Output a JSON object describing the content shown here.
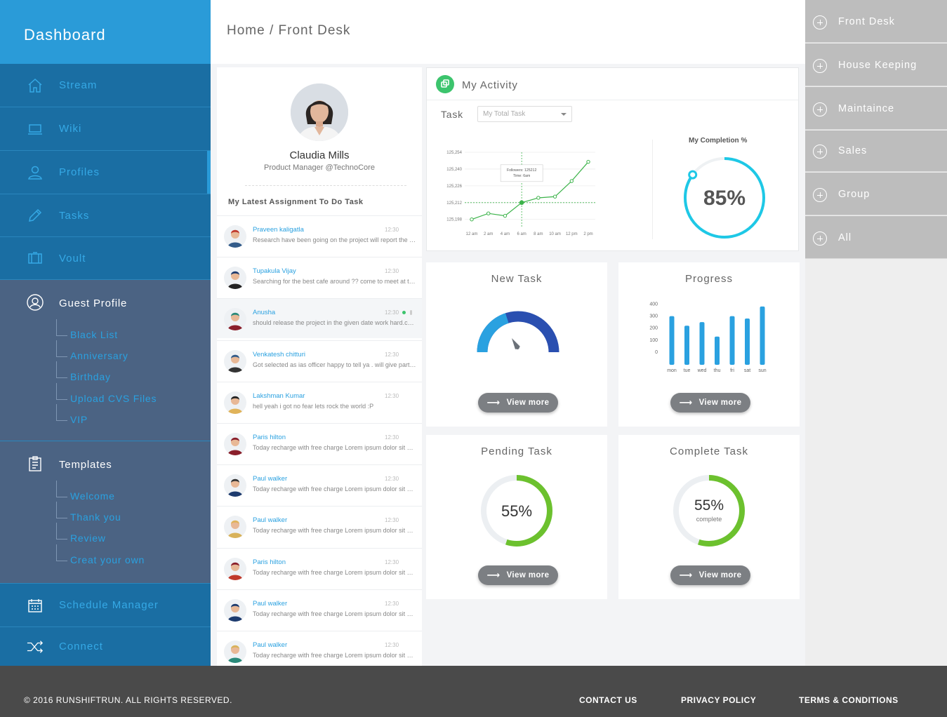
{
  "sidebar": {
    "title": "Dashboard",
    "items": [
      {
        "label": "Stream",
        "icon": "home-icon"
      },
      {
        "label": "Wiki",
        "icon": "laptop-icon"
      },
      {
        "label": "Profiles",
        "icon": "user-icon"
      },
      {
        "label": "Tasks",
        "icon": "pencil-icon"
      },
      {
        "label": "Voult",
        "icon": "vault-icon"
      }
    ],
    "guest_profile": {
      "label": "Guest Profile",
      "icon": "user-circle-icon",
      "subitems": [
        "Black List",
        "Anniversary",
        "Birthday",
        "Upload CVS Files",
        "VIP"
      ]
    },
    "templates": {
      "label": "Templates",
      "icon": "clipboard-icon",
      "subitems": [
        "Welcome",
        "Thank you",
        "Review",
        "Creat your own"
      ]
    },
    "bottom_items": [
      {
        "label": "Schedule Manager",
        "icon": "calendar-icon"
      },
      {
        "label": "Connect",
        "icon": "shuffle-icon"
      }
    ]
  },
  "header": {
    "breadcrumb": "Home / Front Desk"
  },
  "profile": {
    "name": "Claudia Mills",
    "role": "Product Manager @TechnoCore",
    "assignment_title": "My Latest Assignment To Do Task",
    "messages": [
      {
        "name": "Praveen kaligatla",
        "time": "12:30",
        "text": "Research have been going on the project will report the progress soon"
      },
      {
        "name": "Tupakula Vijay",
        "time": "12:30",
        "text": "Searching for the best cafe around ?? come to meet at the lobby"
      },
      {
        "name": "Anusha",
        "time": "12:30",
        "text": "should release the project in the given date work hard.come on team"
      },
      {
        "name": "Venkatesh chitturi",
        "time": "12:30",
        "text": "Got selected as ias officer happy to tell ya . will give party tonight"
      },
      {
        "name": "Lakshman Kumar",
        "time": "12:30",
        "text": "hell yeah i got no fear lets rock the world :P"
      },
      {
        "name": "Paris hilton",
        "time": "12:30",
        "text": "Today recharge with free charge Lorem ipsum dolor sit amet"
      },
      {
        "name": "Paul walker",
        "time": "12:30",
        "text": "Today recharge with free charge Lorem ipsum dolor sit amet"
      },
      {
        "name": "Paul walker",
        "time": "12:30",
        "text": "Today recharge with free charge Lorem ipsum dolor sit amet"
      },
      {
        "name": "Paris hilton",
        "time": "12:30",
        "text": "Today recharge with free charge Lorem ipsum dolor sit amet"
      },
      {
        "name": "Paul walker",
        "time": "12:30",
        "text": "Today recharge with free charge Lorem ipsum dolor sit amet"
      },
      {
        "name": "Paul walker",
        "time": "12:30",
        "text": "Today recharge with free charge Lorem ipsum dolor sit amet"
      }
    ]
  },
  "activity": {
    "title": "My Activity",
    "task_label": "Task",
    "task_select": "My Total Task",
    "tooltip_line1": "Followers: 125212",
    "tooltip_line2": "Time: 6am",
    "completion_label": "My Completion %",
    "completion_value": "85%",
    "completion_fraction": 0.85
  },
  "cards": {
    "new_task": {
      "title": "New Task",
      "button": "View more",
      "gauge_fraction": 0.6
    },
    "progress": {
      "title": "Progress",
      "button": "View more"
    },
    "pending": {
      "title": "Pending  Task",
      "value": "55%",
      "fraction": 0.55,
      "button": "View more"
    },
    "complete": {
      "title": "Complete Task",
      "value": "55%",
      "sub": "complete",
      "fraction": 0.55,
      "button": "View more"
    }
  },
  "chart_data": [
    {
      "type": "line",
      "x": [
        "12 am",
        "2 am",
        "4 am",
        "6 am",
        "8 am",
        "10 am",
        "12 pm",
        "2 pm"
      ],
      "y": [
        125198,
        125203,
        125201,
        125212,
        125216,
        125217,
        125230,
        125246
      ],
      "yticks": [
        "125,254",
        "125,240",
        "125,226",
        "125,212",
        "125,198"
      ],
      "ylim": [
        125192,
        125254
      ],
      "color": "#3cb34a"
    },
    {
      "type": "bar",
      "categories": [
        "mon",
        "tue",
        "wed",
        "thu",
        "fri",
        "sat",
        "sun"
      ],
      "values": [
        300,
        220,
        250,
        130,
        300,
        280,
        380
      ],
      "yticks": [
        "400",
        "300",
        "200",
        "100",
        "0"
      ],
      "ylim": [
        0,
        420
      ],
      "color": "#2aa1e0"
    }
  ],
  "right_panel": {
    "items": [
      "Front Desk",
      "House Keeping",
      "Maintaince",
      "Sales",
      "Group",
      "All"
    ]
  },
  "footer": {
    "copyright": "© 2016 RUNSHIFTRUN. ALL RIGHTS RESERVED.",
    "links": [
      "CONTACT US",
      "PRIVACY POLICY",
      "TERMS & CONDITIONS"
    ]
  },
  "colors": {
    "sidebar": "#1a6ea3",
    "accent": "#2a9bd8",
    "group_bg": "#4b6383",
    "ring_cyan": "#1ec8e6",
    "ring_green": "#6cc12e",
    "gauge_dark": "#2a4fb0"
  }
}
